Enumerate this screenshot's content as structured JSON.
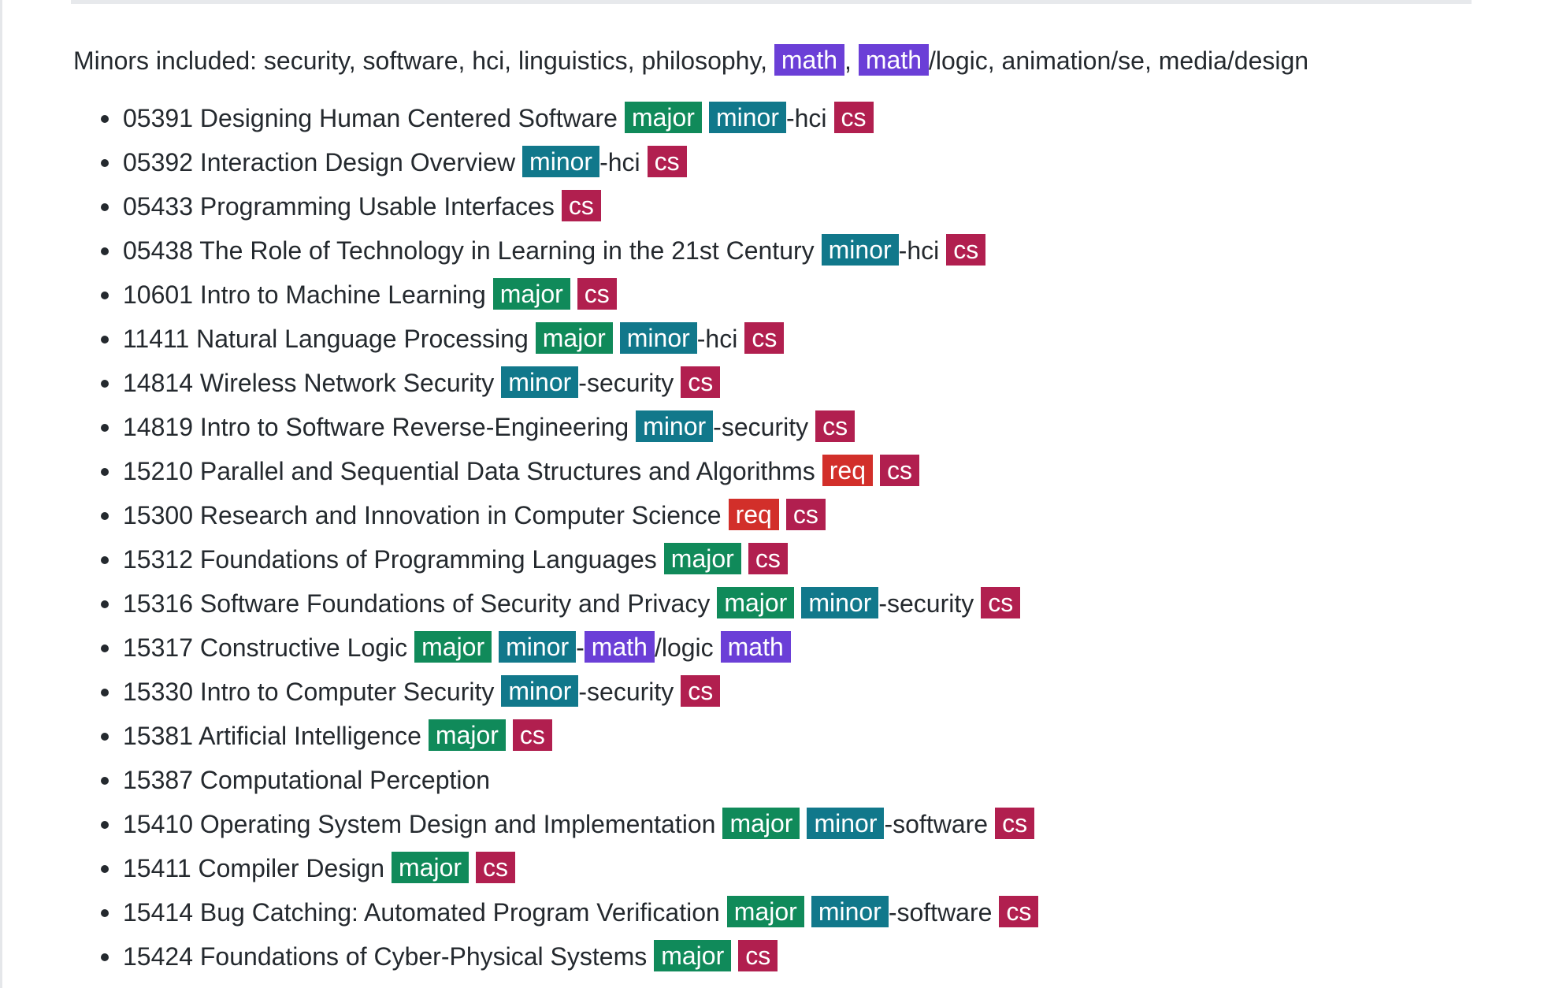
{
  "minors": {
    "prefix": "Minors included: security, software, hci, linguistics, philosophy, ",
    "math_tag_1": "math",
    "comma": ",",
    "math_tag_2": "math",
    "suffix": "/logic, animation/se, media/design"
  },
  "tag_colors": {
    "major": "#108a5a",
    "minor": "#11788b",
    "cs": "#b11f4f",
    "req": "#d22f2a",
    "math": "#6b3fd7"
  },
  "courses": [
    {
      "title": "05391 Designing Human Centered Software",
      "tags": [
        {
          "type": "major",
          "text": "major"
        },
        {
          "type": "minor",
          "text": "minor"
        },
        {
          "type": "suffix",
          "text": "-hci"
        },
        {
          "type": "cs",
          "text": "cs"
        }
      ]
    },
    {
      "title": "05392 Interaction Design Overview",
      "tags": [
        {
          "type": "minor",
          "text": "minor"
        },
        {
          "type": "suffix",
          "text": "-hci"
        },
        {
          "type": "cs",
          "text": "cs"
        }
      ]
    },
    {
      "title": "05433 Programming Usable Interfaces",
      "tags": [
        {
          "type": "cs",
          "text": "cs"
        }
      ]
    },
    {
      "title": "05438 The Role of Technology in Learning in the 21st Century",
      "tags": [
        {
          "type": "minor",
          "text": "minor"
        },
        {
          "type": "suffix",
          "text": "-hci"
        },
        {
          "type": "cs",
          "text": "cs"
        }
      ]
    },
    {
      "title": "10601 Intro to Machine Learning",
      "tags": [
        {
          "type": "major",
          "text": "major"
        },
        {
          "type": "cs",
          "text": "cs"
        }
      ]
    },
    {
      "title": "11411 Natural Language Processing",
      "tags": [
        {
          "type": "major",
          "text": "major"
        },
        {
          "type": "minor",
          "text": "minor"
        },
        {
          "type": "suffix",
          "text": "-hci"
        },
        {
          "type": "cs",
          "text": "cs"
        }
      ]
    },
    {
      "title": "14814 Wireless Network Security",
      "tags": [
        {
          "type": "minor",
          "text": "minor"
        },
        {
          "type": "suffix",
          "text": "-security"
        },
        {
          "type": "cs",
          "text": "cs"
        }
      ]
    },
    {
      "title": "14819 Intro to Software Reverse-Engineering",
      "tags": [
        {
          "type": "minor",
          "text": "minor"
        },
        {
          "type": "suffix",
          "text": "-security"
        },
        {
          "type": "cs",
          "text": "cs"
        }
      ]
    },
    {
      "title": "15210 Parallel and Sequential Data Structures and Algorithms",
      "tags": [
        {
          "type": "req",
          "text": "req"
        },
        {
          "type": "cs",
          "text": "cs"
        }
      ]
    },
    {
      "title": "15300 Research and Innovation in Computer Science",
      "tags": [
        {
          "type": "req",
          "text": "req"
        },
        {
          "type": "cs",
          "text": "cs"
        }
      ]
    },
    {
      "title": "15312 Foundations of Programming Languages",
      "tags": [
        {
          "type": "major",
          "text": "major"
        },
        {
          "type": "cs",
          "text": "cs"
        }
      ]
    },
    {
      "title": "15316 Software Foundations of Security and Privacy",
      "tags": [
        {
          "type": "major",
          "text": "major"
        },
        {
          "type": "minor",
          "text": "minor"
        },
        {
          "type": "suffix",
          "text": "-security"
        },
        {
          "type": "cs",
          "text": "cs"
        }
      ]
    },
    {
      "title": "15317 Constructive Logic",
      "tags": [
        {
          "type": "major",
          "text": "major"
        },
        {
          "type": "minor",
          "text": "minor"
        },
        {
          "type": "suffix",
          "text": "-"
        },
        {
          "type": "math-tight",
          "text": "math"
        },
        {
          "type": "suffix",
          "text": "/logic"
        },
        {
          "type": "math",
          "text": "math"
        }
      ]
    },
    {
      "title": "15330 Intro to Computer Security",
      "tags": [
        {
          "type": "minor",
          "text": "minor"
        },
        {
          "type": "suffix",
          "text": "-security"
        },
        {
          "type": "cs",
          "text": "cs"
        }
      ]
    },
    {
      "title": "15381 Artificial Intelligence",
      "tags": [
        {
          "type": "major",
          "text": "major"
        },
        {
          "type": "cs",
          "text": "cs"
        }
      ]
    },
    {
      "title": "15387 Computational Perception",
      "tags": []
    },
    {
      "title": "15410 Operating System Design and Implementation",
      "tags": [
        {
          "type": "major",
          "text": "major"
        },
        {
          "type": "minor",
          "text": "minor"
        },
        {
          "type": "suffix",
          "text": "-software"
        },
        {
          "type": "cs",
          "text": "cs"
        }
      ]
    },
    {
      "title": "15411 Compiler Design",
      "tags": [
        {
          "type": "major",
          "text": "major"
        },
        {
          "type": "cs",
          "text": "cs"
        }
      ]
    },
    {
      "title": "15414 Bug Catching: Automated Program Verification",
      "tags": [
        {
          "type": "major",
          "text": "major"
        },
        {
          "type": "minor",
          "text": "minor"
        },
        {
          "type": "suffix",
          "text": "-software"
        },
        {
          "type": "cs",
          "text": "cs"
        }
      ]
    },
    {
      "title": "15424 Foundations of Cyber-Physical Systems",
      "tags": [
        {
          "type": "major",
          "text": "major"
        },
        {
          "type": "cs",
          "text": "cs"
        }
      ]
    }
  ]
}
